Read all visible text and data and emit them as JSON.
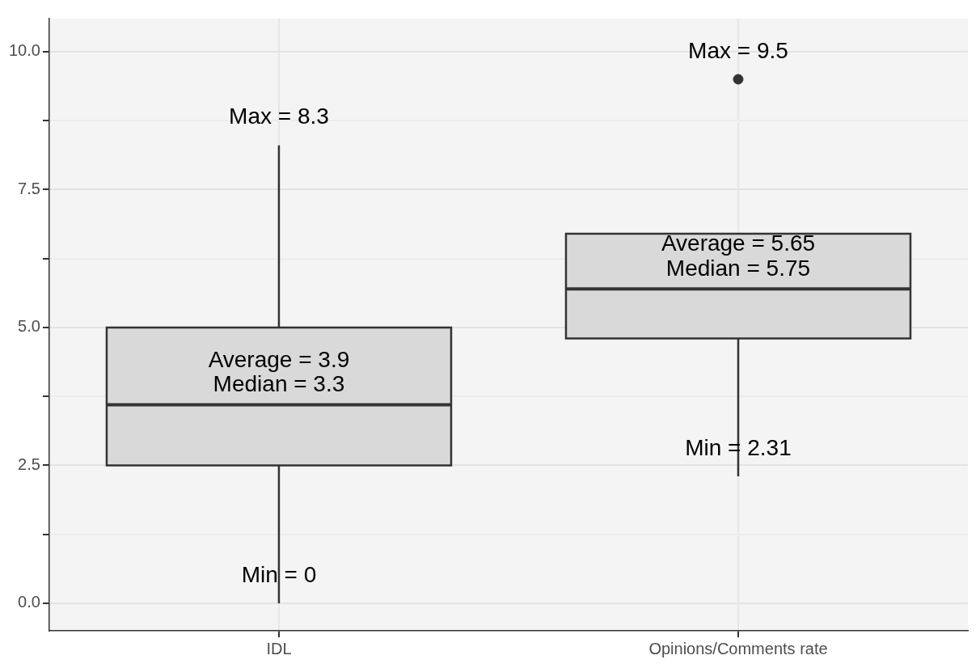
{
  "chart_data": {
    "type": "box",
    "categories": [
      "IDL",
      "Opinions/Comments rate"
    ],
    "series": [
      {
        "color": "#d9d9d9",
        "boxes": [
          {
            "low": 0,
            "q1": 2.5,
            "median": 3.6,
            "q3": 5.0,
            "high": 8.3
          },
          {
            "low": 2.3,
            "q1": 4.8,
            "median": 5.7,
            "q3": 6.7,
            "high": 6.7,
            "outliers": [
              9.5
            ]
          }
        ]
      }
    ],
    "ylim": [
      -0.5,
      10.6
    ],
    "yticks": [
      {
        "value": 0,
        "label": "0.0"
      },
      {
        "value": 1.25,
        "label": null
      },
      {
        "value": 2.5,
        "label": "2.5"
      },
      {
        "value": 3.75,
        "label": null
      },
      {
        "value": 5,
        "label": "5.0"
      },
      {
        "value": 6.25,
        "label": null
      },
      {
        "value": 7.5,
        "label": "7.5"
      },
      {
        "value": 8.75,
        "label": null
      },
      {
        "value": 10,
        "label": "10.0"
      }
    ],
    "grid": true,
    "annotations": [
      "Max = 8.3",
      "Average = 3.9",
      "Median = 3.3",
      "Min = 0",
      "Max = 9.5",
      "Average = 5.65",
      "Median = 5.75",
      "Min = 2.31"
    ]
  }
}
